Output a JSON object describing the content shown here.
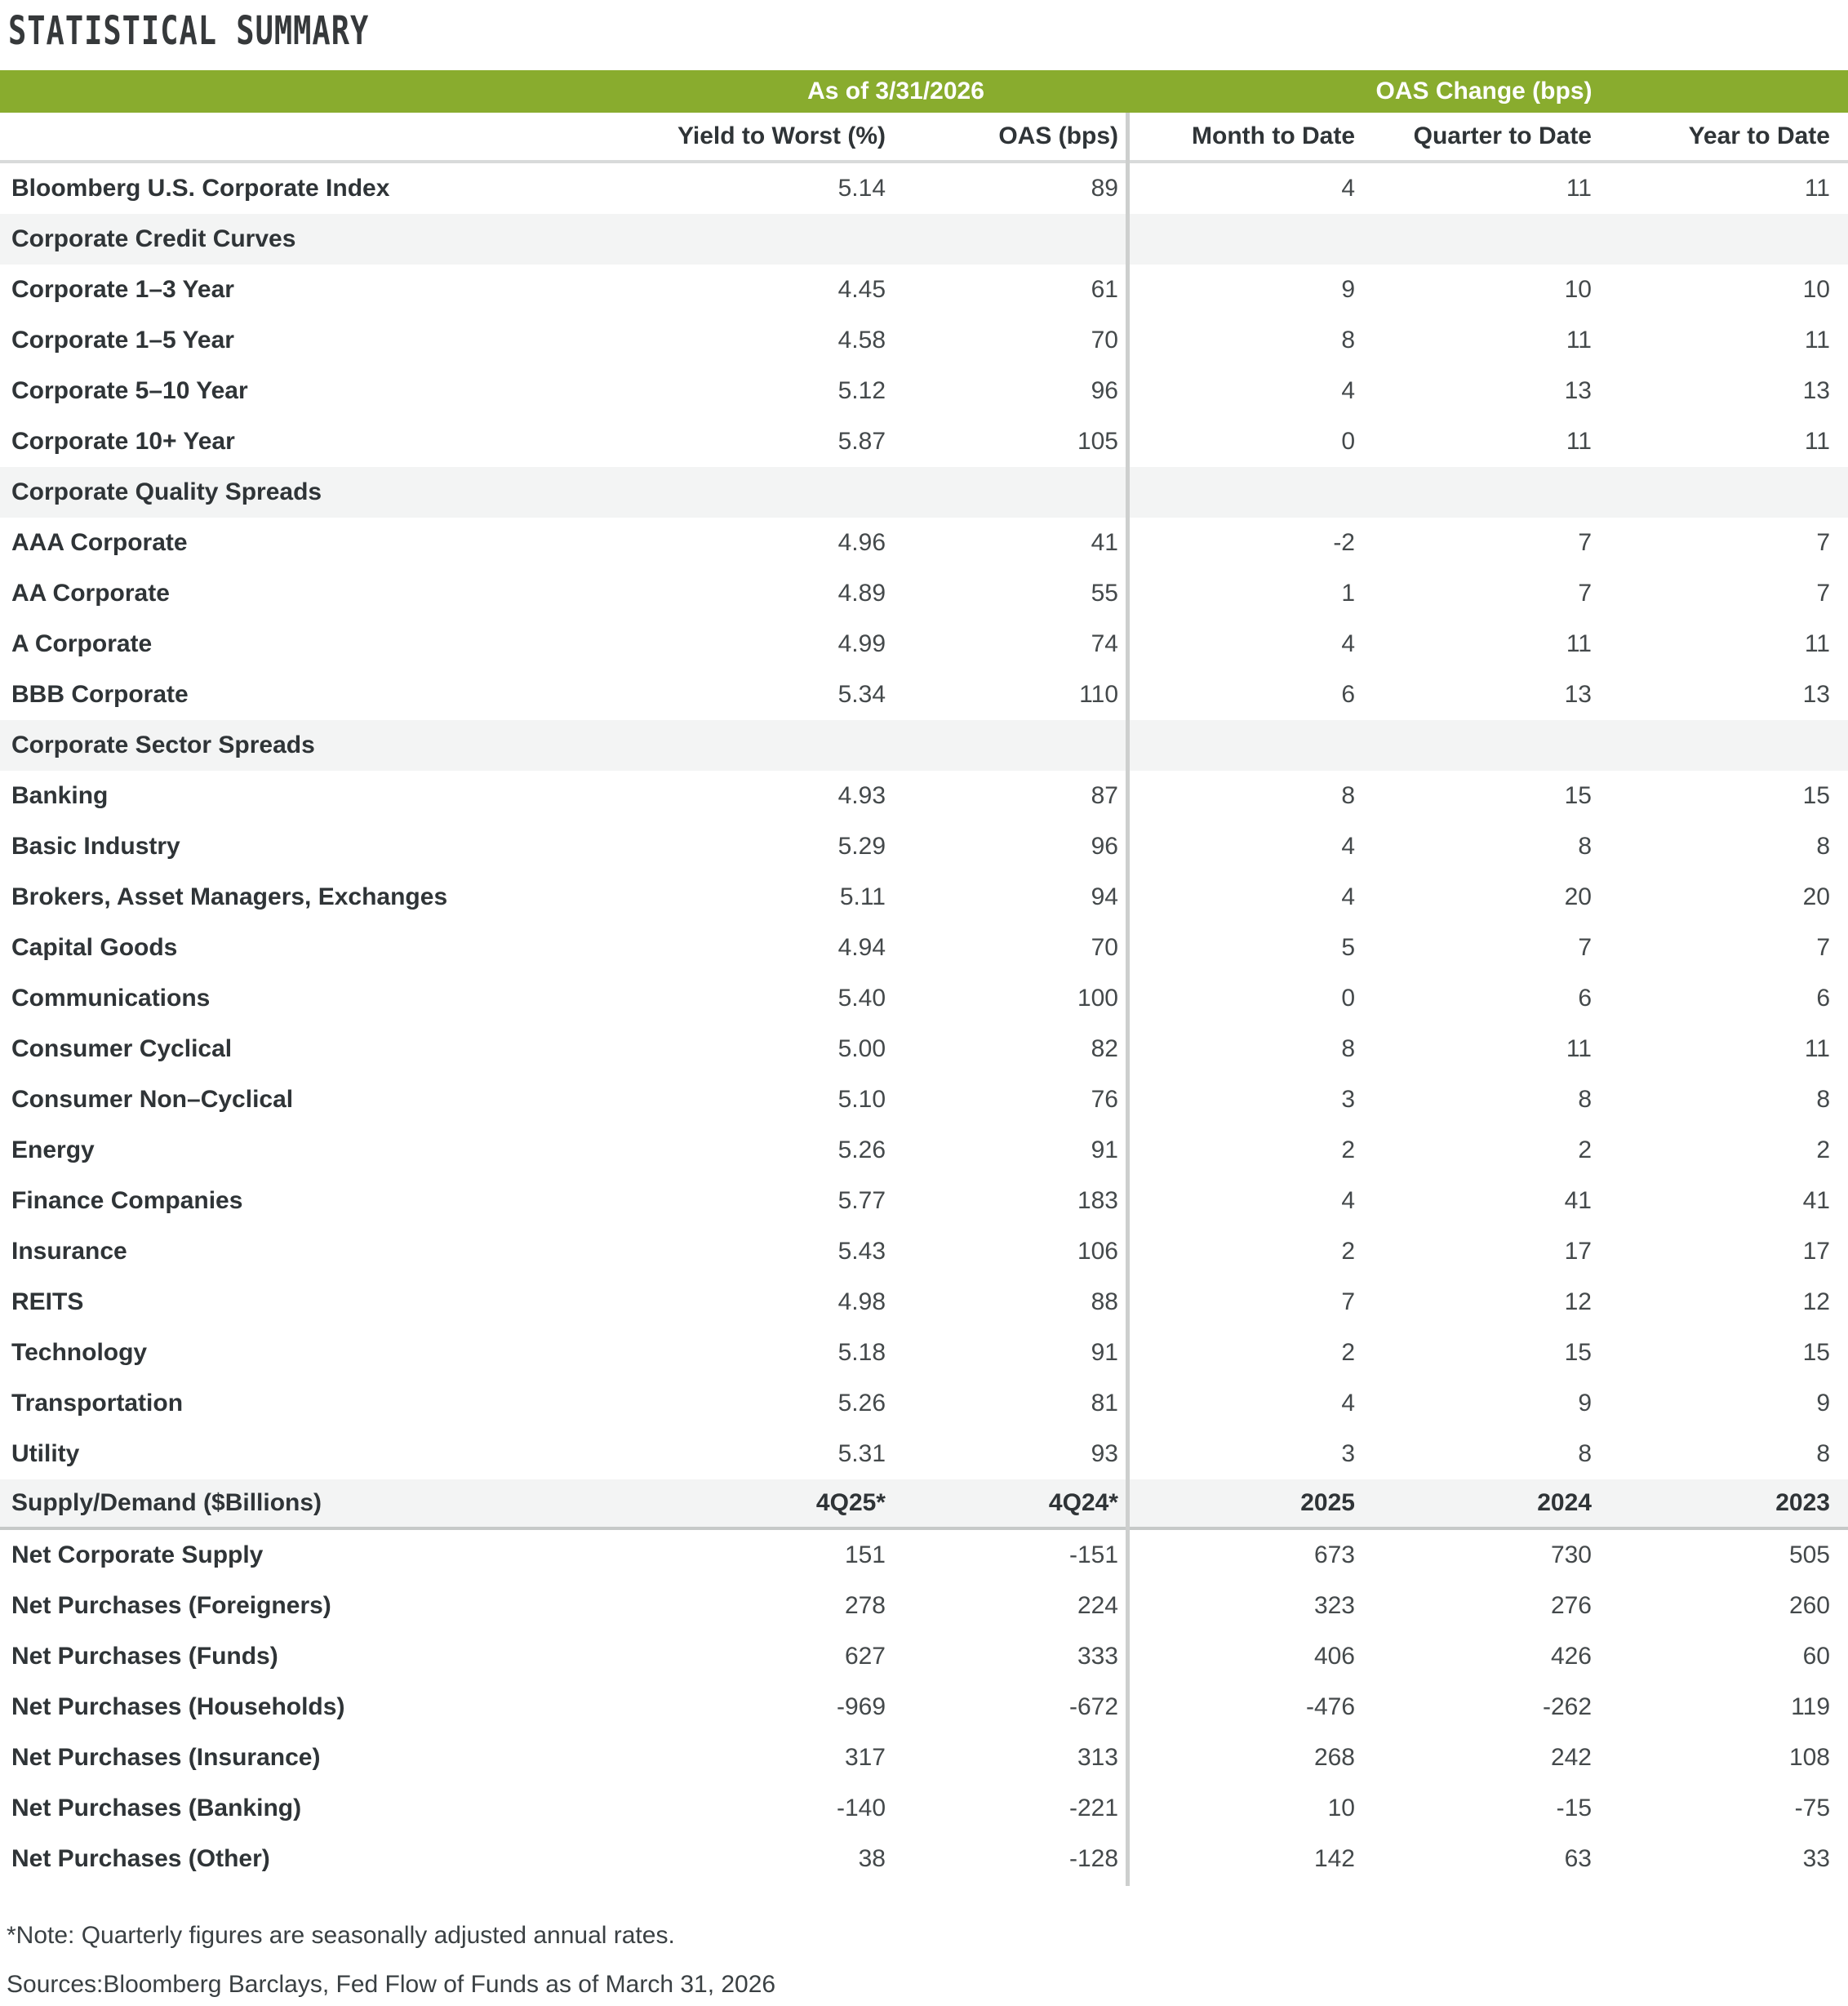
{
  "title": "STATISTICAL SUMMARY",
  "colors": {
    "header_green": "#89AC2E",
    "section_row_bg": "#F3F4F4",
    "divider_gray": "#CDCFCE",
    "text_dark": "#2F3437"
  },
  "table": {
    "group_headers": {
      "as_of": "As of 3/31/2026",
      "oas_change": "OAS Change (bps)"
    },
    "columns": [
      "Yield to Worst (%)",
      "OAS (bps)",
      "Month to Date",
      "Quarter to Date",
      "Year to Date"
    ],
    "rows": [
      {
        "type": "data",
        "label": "Bloomberg U.S. Corporate Index",
        "values": [
          "5.14",
          "89",
          "4",
          "11",
          "11"
        ]
      },
      {
        "type": "section",
        "label": "Corporate Credit Curves"
      },
      {
        "type": "data",
        "label": "Corporate 1–3 Year",
        "values": [
          "4.45",
          "61",
          "9",
          "10",
          "10"
        ]
      },
      {
        "type": "data",
        "label": "Corporate 1–5 Year",
        "values": [
          "4.58",
          "70",
          "8",
          "11",
          "11"
        ]
      },
      {
        "type": "data",
        "label": "Corporate 5–10 Year",
        "values": [
          "5.12",
          "96",
          "4",
          "13",
          "13"
        ]
      },
      {
        "type": "data",
        "label": "Corporate 10+ Year",
        "values": [
          "5.87",
          "105",
          "0",
          "11",
          "11"
        ]
      },
      {
        "type": "section",
        "label": "Corporate Quality Spreads"
      },
      {
        "type": "data",
        "label": "AAA Corporate",
        "values": [
          "4.96",
          "41",
          "-2",
          "7",
          "7"
        ]
      },
      {
        "type": "data",
        "label": "AA Corporate",
        "values": [
          "4.89",
          "55",
          "1",
          "7",
          "7"
        ]
      },
      {
        "type": "data",
        "label": "A Corporate",
        "values": [
          "4.99",
          "74",
          "4",
          "11",
          "11"
        ]
      },
      {
        "type": "data",
        "label": "BBB Corporate",
        "values": [
          "5.34",
          "110",
          "6",
          "13",
          "13"
        ]
      },
      {
        "type": "section",
        "label": "Corporate Sector Spreads"
      },
      {
        "type": "data",
        "label": "Banking",
        "values": [
          "4.93",
          "87",
          "8",
          "15",
          "15"
        ]
      },
      {
        "type": "data",
        "label": "Basic Industry",
        "values": [
          "5.29",
          "96",
          "4",
          "8",
          "8"
        ]
      },
      {
        "type": "data",
        "label": "Brokers, Asset Managers, Exchanges",
        "values": [
          "5.11",
          "94",
          "4",
          "20",
          "20"
        ]
      },
      {
        "type": "data",
        "label": "Capital Goods",
        "values": [
          "4.94",
          "70",
          "5",
          "7",
          "7"
        ]
      },
      {
        "type": "data",
        "label": "Communications",
        "values": [
          "5.40",
          "100",
          "0",
          "6",
          "6"
        ]
      },
      {
        "type": "data",
        "label": "Consumer Cyclical",
        "values": [
          "5.00",
          "82",
          "8",
          "11",
          "11"
        ]
      },
      {
        "type": "data",
        "label": "Consumer Non–Cyclical",
        "values": [
          "5.10",
          "76",
          "3",
          "8",
          "8"
        ]
      },
      {
        "type": "data",
        "label": "Energy",
        "values": [
          "5.26",
          "91",
          "2",
          "2",
          "2"
        ]
      },
      {
        "type": "data",
        "label": "Finance Companies",
        "values": [
          "5.77",
          "183",
          "4",
          "41",
          "41"
        ]
      },
      {
        "type": "data",
        "label": "Insurance",
        "values": [
          "5.43",
          "106",
          "2",
          "17",
          "17"
        ]
      },
      {
        "type": "data",
        "label": "REITS",
        "values": [
          "4.98",
          "88",
          "7",
          "12",
          "12"
        ]
      },
      {
        "type": "data",
        "label": "Technology",
        "values": [
          "5.18",
          "91",
          "2",
          "15",
          "15"
        ]
      },
      {
        "type": "data",
        "label": "Transportation",
        "values": [
          "5.26",
          "81",
          "4",
          "9",
          "9"
        ]
      },
      {
        "type": "data",
        "label": "Utility",
        "values": [
          "5.31",
          "93",
          "3",
          "8",
          "8"
        ]
      },
      {
        "type": "subheader",
        "label": "Supply/Demand ($Billions)",
        "values": [
          "4Q25*",
          "4Q24*",
          "2025",
          "2024",
          "2023"
        ]
      },
      {
        "type": "data",
        "label": "Net Corporate Supply",
        "values": [
          "151",
          "-151",
          "673",
          "730",
          "505"
        ]
      },
      {
        "type": "data",
        "label": "Net Purchases (Foreigners)",
        "values": [
          "278",
          "224",
          "323",
          "276",
          "260"
        ]
      },
      {
        "type": "data",
        "label": "Net Purchases (Funds)",
        "values": [
          "627",
          "333",
          "406",
          "426",
          "60"
        ]
      },
      {
        "type": "data",
        "label": "Net Purchases (Households)",
        "values": [
          "-969",
          "-672",
          "-476",
          "-262",
          "119"
        ]
      },
      {
        "type": "data",
        "label": "Net Purchases (Insurance)",
        "values": [
          "317",
          "313",
          "268",
          "242",
          "108"
        ]
      },
      {
        "type": "data",
        "label": "Net Purchases (Banking)",
        "values": [
          "-140",
          "-221",
          "10",
          "-15",
          "-75"
        ]
      },
      {
        "type": "data",
        "label": "Net Purchases (Other)",
        "values": [
          "38",
          "-128",
          "142",
          "63",
          "33"
        ]
      }
    ]
  },
  "footnotes": [
    "*Note: Quarterly figures are seasonally adjusted annual rates.",
    "Sources:Bloomberg Barclays, Fed Flow of Funds as of March 31, 2026"
  ]
}
